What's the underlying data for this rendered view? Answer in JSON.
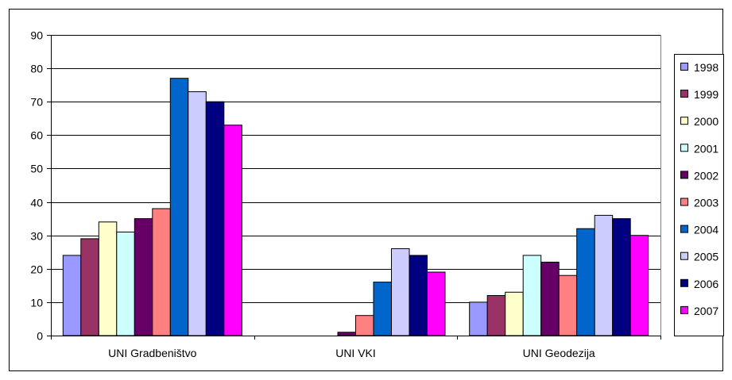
{
  "chart_data": {
    "type": "bar",
    "title": "",
    "xlabel": "",
    "ylabel": "",
    "ylim": [
      0,
      90
    ],
    "yticks": [
      0,
      10,
      20,
      30,
      40,
      50,
      60,
      70,
      80,
      90
    ],
    "grid": "horizontal",
    "legend_position": "right",
    "categories": [
      "UNI Gradbeništvo",
      "UNI VKI",
      "UNI Geodezija"
    ],
    "series": [
      {
        "name": "1998",
        "color": "#9999FF",
        "values": [
          24,
          0,
          10
        ]
      },
      {
        "name": "1999",
        "color": "#993366",
        "values": [
          29,
          0,
          12
        ]
      },
      {
        "name": "2000",
        "color": "#FFFFCC",
        "values": [
          34,
          0,
          13
        ]
      },
      {
        "name": "2001",
        "color": "#CCFFFF",
        "values": [
          31,
          0,
          24
        ]
      },
      {
        "name": "2002",
        "color": "#660066",
        "values": [
          35,
          1,
          22
        ]
      },
      {
        "name": "2003",
        "color": "#FF8080",
        "values": [
          38,
          6,
          18
        ]
      },
      {
        "name": "2004",
        "color": "#0066CC",
        "values": [
          77,
          16,
          32
        ]
      },
      {
        "name": "2005",
        "color": "#CCCCFF",
        "values": [
          73,
          26,
          36
        ]
      },
      {
        "name": "2006",
        "color": "#000080",
        "values": [
          70,
          24,
          35
        ]
      },
      {
        "name": "2007",
        "color": "#FF00FF",
        "values": [
          63,
          19,
          30
        ]
      }
    ]
  }
}
